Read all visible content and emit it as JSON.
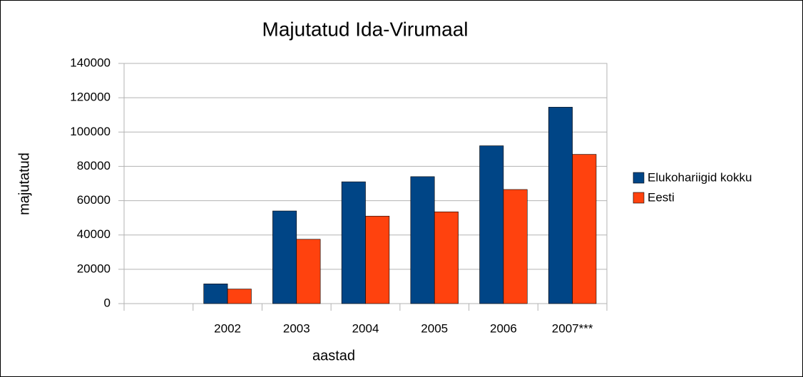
{
  "chart_data": {
    "type": "bar",
    "title": "Majutatud Ida-Virumaal",
    "x_label": "aastad",
    "y_label": "majutatud",
    "categories": [
      null,
      "2002",
      "2003",
      "2004",
      "2005",
      "2006",
      "2007***"
    ],
    "series": [
      {
        "name": "Elukohariigid kokku",
        "color": "#004586",
        "values": [
          null,
          11500,
          54000,
          71000,
          74000,
          92000,
          114500
        ]
      },
      {
        "name": "Eesti",
        "color": "#ff420e",
        "values": [
          null,
          8500,
          37500,
          51000,
          53500,
          66500,
          87000
        ]
      }
    ],
    "ylim": [
      0,
      140000
    ],
    "yticks": [
      0,
      20000,
      40000,
      60000,
      80000,
      100000,
      120000,
      140000
    ],
    "grid": true,
    "legend": "right"
  }
}
